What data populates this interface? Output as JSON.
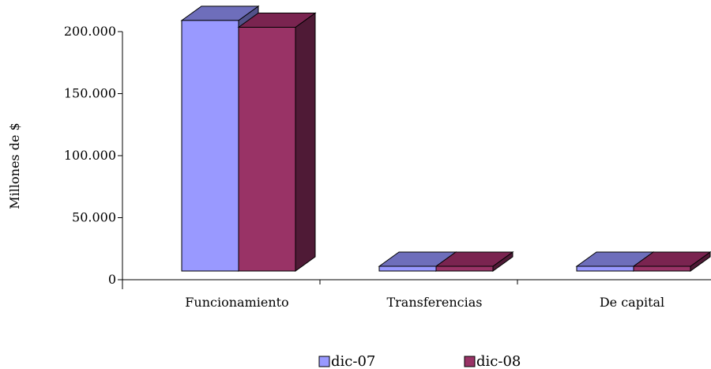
{
  "chart_data": {
    "type": "bar",
    "title": "",
    "xlabel": "",
    "ylabel": "Millones de $",
    "categories": [
      "Funcionamiento",
      "Transferencias",
      "De capital"
    ],
    "series": [
      {
        "name": "dic-07",
        "values": [
          202000,
          2500,
          2500
        ],
        "color": "#9999ff",
        "top_color": "#6e6ebb",
        "side_color": "#52528a"
      },
      {
        "name": "dic-08",
        "values": [
          196500,
          2500,
          2500
        ],
        "color": "#993366",
        "top_color": "#7a2450",
        "side_color": "#4f1a36"
      }
    ],
    "ylim": [
      0,
      200000
    ],
    "yticks": [
      0,
      50000,
      100000,
      150000,
      200000
    ],
    "ytick_labels": [
      "0",
      "50.000",
      "100.000",
      "150.000",
      "200.000"
    ],
    "grid": false,
    "legend": "bottom",
    "style": "3d-clustered-column"
  }
}
